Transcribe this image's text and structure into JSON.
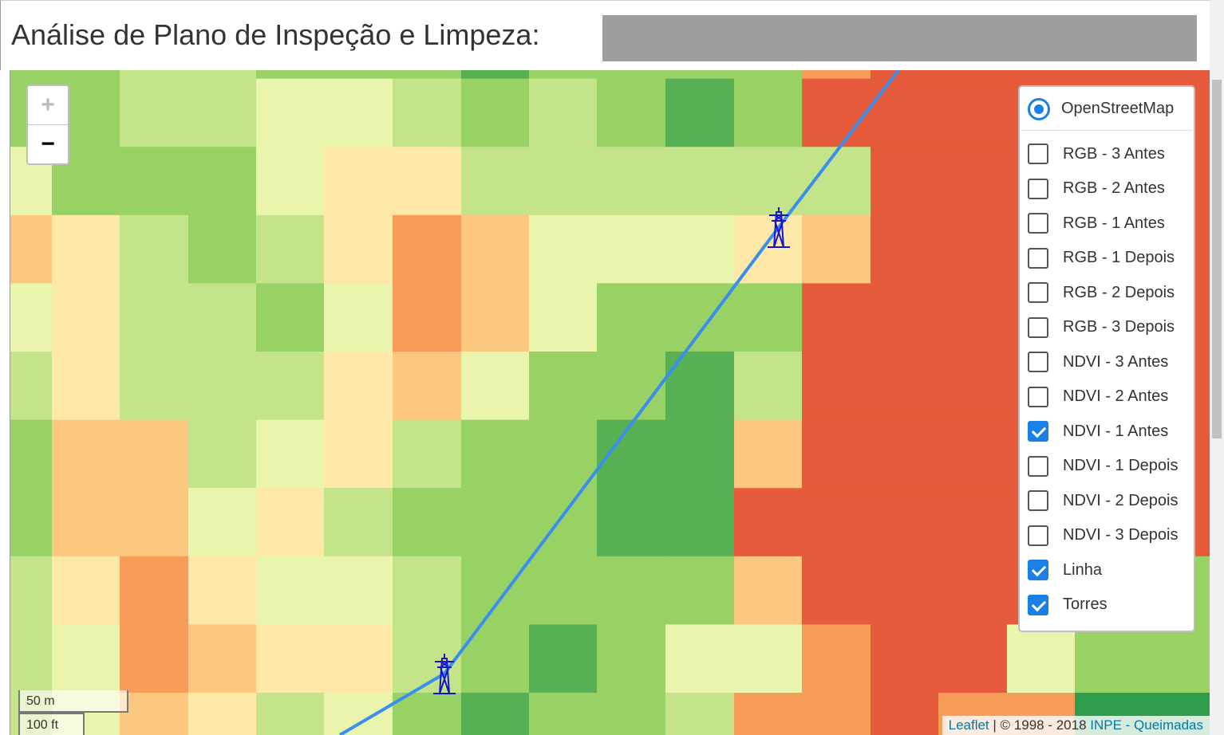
{
  "header": {
    "title": "Análise de Plano de Inspeção e Limpeza:"
  },
  "map": {
    "zoom": {
      "in": "+",
      "out": "−"
    },
    "base_layers": [
      {
        "label": "OpenStreetMap",
        "selected": true
      }
    ],
    "overlays": [
      {
        "label": "RGB - 3 Antes",
        "checked": false
      },
      {
        "label": "RGB - 2 Antes",
        "checked": false
      },
      {
        "label": "RGB - 1 Antes",
        "checked": false
      },
      {
        "label": "RGB - 1 Depois",
        "checked": false
      },
      {
        "label": "RGB - 2 Depois",
        "checked": false
      },
      {
        "label": "RGB - 3 Depois",
        "checked": false
      },
      {
        "label": "NDVI - 3 Antes",
        "checked": false
      },
      {
        "label": "NDVI - 2 Antes",
        "checked": false
      },
      {
        "label": "NDVI - 1 Antes",
        "checked": true
      },
      {
        "label": "NDVI - 1 Depois",
        "checked": false
      },
      {
        "label": "NDVI - 2 Depois",
        "checked": false
      },
      {
        "label": "NDVI - 3 Depois",
        "checked": false
      },
      {
        "label": "Linha",
        "checked": true
      },
      {
        "label": "Torres",
        "checked": true
      }
    ],
    "scale": {
      "metric": "50 m",
      "imperial": "100 ft"
    },
    "attribution": {
      "library": "Leaflet",
      "copyright": "| © 1998 - 2018",
      "source": "INPE - Queimadas"
    }
  }
}
